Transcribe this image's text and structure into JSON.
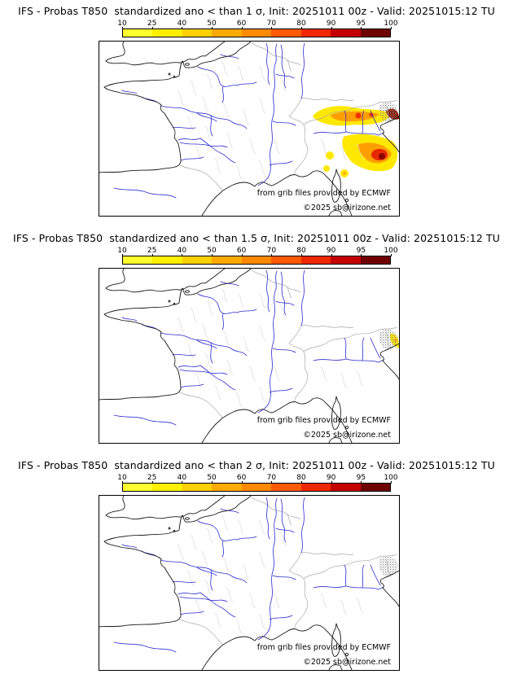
{
  "panels": [
    {
      "title": "IFS - Probas T850  standardized ano < than 1 σ, Init: 20251011 00z - Valid: 20251015:12 TU",
      "overlay": "sigma1"
    },
    {
      "title": "IFS - Probas T850  standardized ano < than 1.5 σ, Init: 20251011 00z - Valid: 20251015:12 TU",
      "overlay": "sigma15"
    },
    {
      "title": "IFS - Probas T850  standardized ano < than 2 σ, Init: 20251011 00z - Valid: 20251015:12 TU",
      "overlay": "none"
    }
  ],
  "colorbar": {
    "ticks": [
      "10",
      "25",
      "40",
      "50",
      "60",
      "70",
      "80",
      "90",
      "95",
      "100"
    ],
    "colors": [
      "#ffff2e",
      "#fff000",
      "#ffd000",
      "#ffaa00",
      "#ff8a00",
      "#ff5a00",
      "#f02800",
      "#c40000",
      "#6e0000"
    ]
  },
  "credits": {
    "line1": "from grib files provided by ECMWF",
    "line2": "©2025 sb@irizone.net"
  },
  "map": {
    "region": "Western Europe / France / Northern Italy",
    "rivers_color": "#2b2bd0",
    "borders_color": "#c4c4c4",
    "coast_color": "#1a1a1a"
  },
  "chart_data": {
    "type": "heatmap",
    "title": "IFS probability (%) that T850 standardized anomaly is below threshold",
    "init": "20251011 00z",
    "valid": "20251015:12 TU",
    "legend_ticks_percent": [
      10,
      25,
      40,
      50,
      60,
      70,
      80,
      90,
      95,
      100
    ],
    "panels": [
      {
        "threshold_sigma": 1,
        "shading": "large yellow-orange-red area over northern Italy and northern Adriatic, peak values 90-100% near NE Italy; scattered yellow 10-25% spots over Liguria/Corsica region"
      },
      {
        "threshold_sigma": 1.5,
        "shading": "small yellow patch 10-25% at the far NE edge of the map (NE Italy)"
      },
      {
        "threshold_sigma": 2,
        "shading": "no shaded areas visible"
      }
    ]
  }
}
